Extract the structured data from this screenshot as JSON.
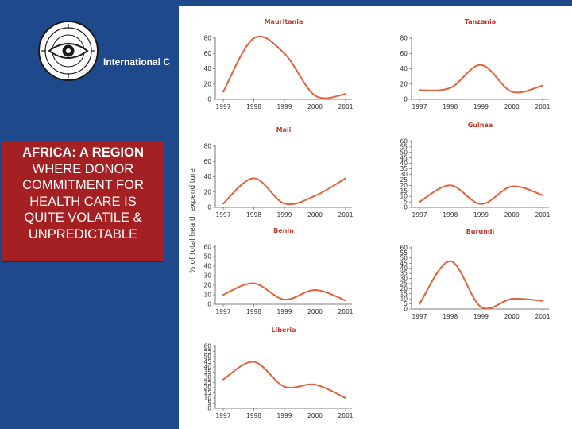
{
  "header": {
    "org_name": "International C",
    "seal_icon": "university-seal-icon"
  },
  "title_box": {
    "lines": [
      "AFRICA: A REGION",
      "WHERE DONOR",
      "COMMITMENT FOR",
      "HEALTH CARE IS",
      "QUITE VOLATILE &",
      "UNPREDICTABLE"
    ]
  },
  "colors": {
    "background": "#1e4a8c",
    "title_box": "#a52022",
    "curve": "#e2603a",
    "panel_title": "#c0392b"
  },
  "chart_data": {
    "type": "line",
    "ylabel": "% of total health expenditure",
    "panels": [
      {
        "title": "Mauritania",
        "x": [
          1997,
          1998,
          1999,
          2000,
          2001
        ],
        "y": [
          10,
          80,
          60,
          5,
          7
        ],
        "ylim": [
          0,
          80
        ],
        "yticks": [
          0,
          20,
          40,
          60,
          80
        ]
      },
      {
        "title": "Tanzania",
        "x": [
          1997,
          1998,
          1999,
          2000,
          2001
        ],
        "y": [
          12,
          15,
          45,
          10,
          18
        ],
        "ylim": [
          0,
          80
        ],
        "yticks": [
          0,
          20,
          40,
          60,
          80
        ]
      },
      {
        "title": "Mali",
        "x": [
          1997,
          1998,
          1999,
          2000,
          2001
        ],
        "y": [
          5,
          38,
          5,
          15,
          38
        ],
        "ylim": [
          0,
          80
        ],
        "yticks": [
          0,
          20,
          40,
          60,
          80
        ]
      },
      {
        "title": "Guinea",
        "x": [
          1997,
          1998,
          1999,
          2000,
          2001
        ],
        "y": [
          5,
          20,
          3,
          19,
          11
        ],
        "ylim": [
          0,
          60
        ],
        "yticks": [
          0,
          5,
          10,
          15,
          20,
          25,
          30,
          35,
          40,
          45,
          50,
          55,
          60
        ]
      },
      {
        "title": "Benin",
        "x": [
          1997,
          1998,
          1999,
          2000,
          2001
        ],
        "y": [
          10,
          22,
          5,
          15,
          4
        ],
        "ylim": [
          0,
          60
        ],
        "yticks": [
          0,
          10,
          20,
          30,
          40,
          50,
          60
        ]
      },
      {
        "title": "Burundi",
        "x": [
          1997,
          1998,
          1999,
          2000,
          2001
        ],
        "y": [
          5,
          47,
          2,
          10,
          8
        ],
        "ylim": [
          0,
          60
        ],
        "yticks": [
          0,
          5,
          10,
          15,
          20,
          25,
          30,
          35,
          40,
          45,
          50,
          55,
          60
        ]
      },
      {
        "title": "Liberia",
        "x": [
          1997,
          1998,
          1999,
          2000,
          2001
        ],
        "y": [
          28,
          45,
          21,
          23,
          10
        ],
        "ylim": [
          0,
          60
        ],
        "yticks": [
          0,
          5,
          10,
          15,
          20,
          25,
          30,
          35,
          40,
          45,
          50,
          55,
          60
        ]
      }
    ]
  }
}
